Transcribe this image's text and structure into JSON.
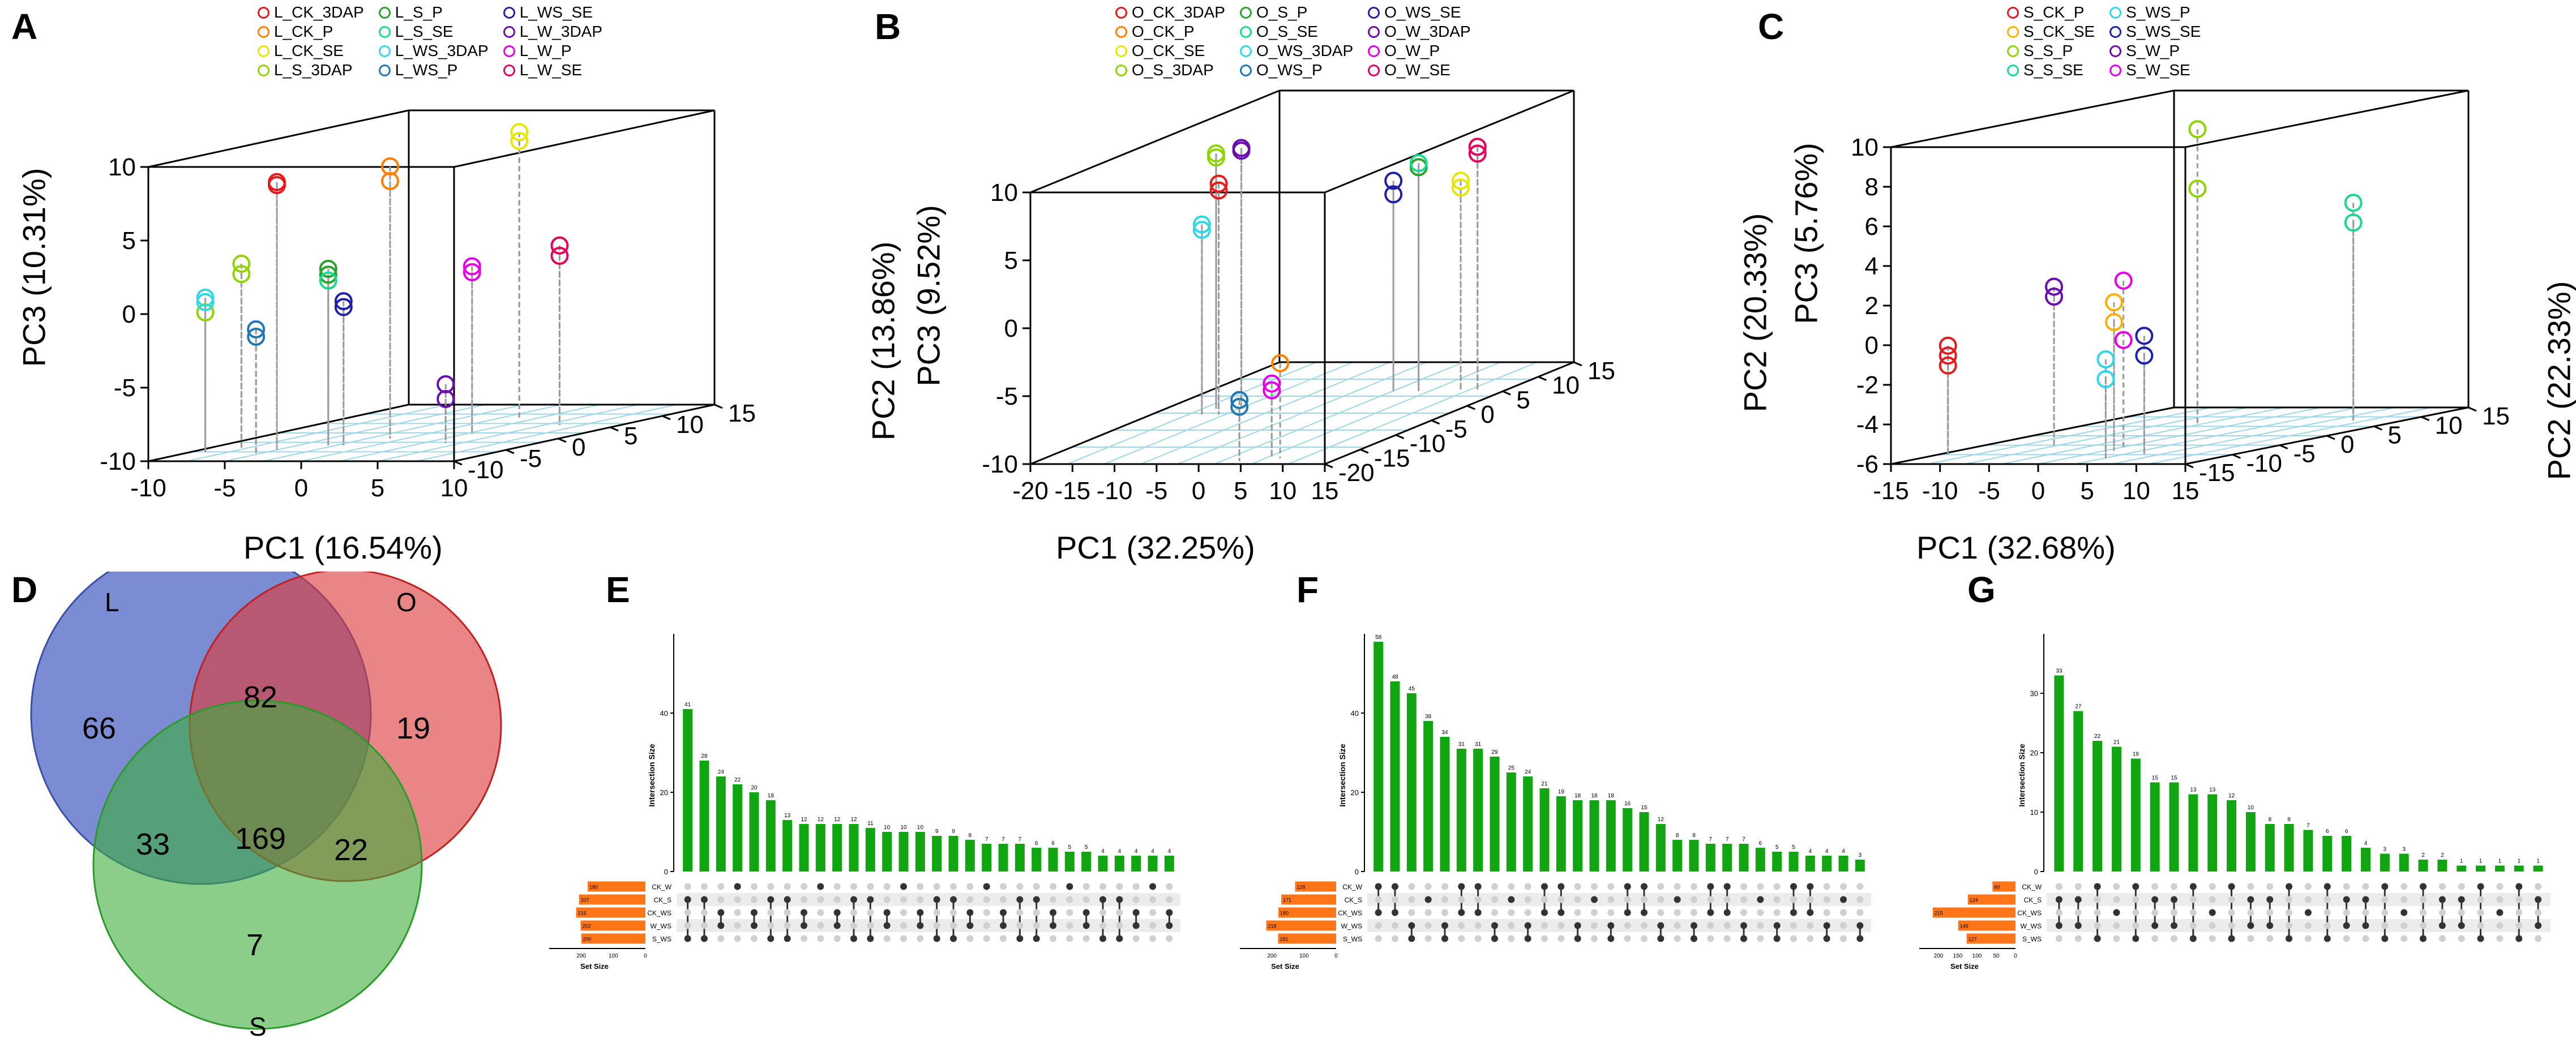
{
  "chart_data": [
    {
      "panel": "A",
      "type": "scatter",
      "legend": [
        {
          "label": "L_CK_3DAP",
          "color": "#e41a1c"
        },
        {
          "label": "L_CK_P",
          "color": "#ff7f00"
        },
        {
          "label": "L_CK_SE",
          "color": "#e6e600"
        },
        {
          "label": "L_S_3DAP",
          "color": "#8fd400"
        },
        {
          "label": "L_S_P",
          "color": "#2ca02c"
        },
        {
          "label": "L_S_SE",
          "color": "#17d98f"
        },
        {
          "label": "L_WS_3DAP",
          "color": "#33d6e6"
        },
        {
          "label": "L_WS_P",
          "color": "#1f77b4"
        },
        {
          "label": "L_WS_SE",
          "color": "#1f1fa8"
        },
        {
          "label": "L_W_3DAP",
          "color": "#6a0dad"
        },
        {
          "label": "L_W_P",
          "color": "#e600e6"
        },
        {
          "label": "L_W_SE",
          "color": "#e6005c"
        }
      ],
      "xlabel": "PC1 (16.54%)",
      "ylabel": "PC2 (13.86%)",
      "zlabel": "PC3 (10.31%)",
      "x_ticks": [
        "-10",
        "-5",
        "0",
        "5",
        "10"
      ],
      "y_ticks": [
        "-10",
        "-5",
        "0",
        "5",
        "10",
        "15"
      ],
      "z_ticks": [
        "-10",
        "-5",
        "0",
        "5",
        "10"
      ],
      "xlim": [
        -10,
        10
      ],
      "ylim": [
        -10,
        15
      ],
      "zlim": [
        -10,
        10
      ],
      "points": [
        {
          "x": -5,
          "y": -5,
          "z": 8,
          "c": 0
        },
        {
          "x": -5,
          "y": -5,
          "z": 8.2,
          "c": 0
        },
        {
          "x": -1,
          "y": 0,
          "z": 7.5,
          "c": 1
        },
        {
          "x": -1,
          "y": 0,
          "z": 8.5,
          "c": 1
        },
        {
          "x": 2,
          "y": 8,
          "z": 9,
          "c": 2
        },
        {
          "x": 2,
          "y": 8,
          "z": 9.6,
          "c": 2
        },
        {
          "x": -8,
          "y": -4,
          "z": 2.5,
          "c": 3
        },
        {
          "x": -8,
          "y": -4,
          "z": 1.8,
          "c": 3
        },
        {
          "x": -9,
          "y": -6,
          "z": -0.5,
          "c": 3
        },
        {
          "x": -3,
          "y": -3,
          "z": 2,
          "c": 4
        },
        {
          "x": -3,
          "y": -3,
          "z": 1.6,
          "c": 4
        },
        {
          "x": -3,
          "y": -3,
          "z": 1.2,
          "c": 5
        },
        {
          "x": -9,
          "y": -6,
          "z": 0.5,
          "c": 6
        },
        {
          "x": -9,
          "y": -6,
          "z": 0.2,
          "c": 6
        },
        {
          "x": -5,
          "y": -7,
          "z": -2,
          "c": 7
        },
        {
          "x": -5,
          "y": -7,
          "z": -1.5,
          "c": 7
        },
        {
          "x": -2,
          "y": -3,
          "z": -0.6,
          "c": 8
        },
        {
          "x": -2,
          "y": -3,
          "z": -0.2,
          "c": 8
        },
        {
          "x": 4,
          "y": -2,
          "z": -7,
          "c": 9
        },
        {
          "x": 4,
          "y": -2,
          "z": -6,
          "c": 9
        },
        {
          "x": 3,
          "y": 2,
          "z": 1,
          "c": 10
        },
        {
          "x": 3,
          "y": 2,
          "z": 1.4,
          "c": 10
        },
        {
          "x": 6,
          "y": 6,
          "z": 1.5,
          "c": 11
        },
        {
          "x": 6,
          "y": 6,
          "z": 2.2,
          "c": 11
        }
      ]
    },
    {
      "panel": "B",
      "type": "scatter",
      "legend": [
        {
          "label": "O_CK_3DAP",
          "color": "#e41a1c"
        },
        {
          "label": "O_CK_P",
          "color": "#ff7f00"
        },
        {
          "label": "O_CK_SE",
          "color": "#e6e600"
        },
        {
          "label": "O_S_3DAP",
          "color": "#8fd400"
        },
        {
          "label": "O_S_P",
          "color": "#2ca02c"
        },
        {
          "label": "O_S_SE",
          "color": "#17d98f"
        },
        {
          "label": "O_WS_3DAP",
          "color": "#33d6e6"
        },
        {
          "label": "O_WS_P",
          "color": "#1f77b4"
        },
        {
          "label": "O_WS_SE",
          "color": "#1f1fa8"
        },
        {
          "label": "O_W_3DAP",
          "color": "#6a0dad"
        },
        {
          "label": "O_W_P",
          "color": "#e600e6"
        },
        {
          "label": "O_W_SE",
          "color": "#e6005c"
        }
      ],
      "xlabel": "PC1 (32.25%)",
      "ylabel": "PC2 (20.33%)",
      "zlabel": "PC3 (9.52%)",
      "x_ticks": [
        "-20",
        "-15",
        "-10",
        "-5",
        "0",
        "5",
        "10",
        "15"
      ],
      "y_ticks": [
        "-20",
        "-15",
        "-10",
        "-5",
        "0",
        "5",
        "10",
        "15"
      ],
      "z_ticks": [
        "-10",
        "-5",
        "0",
        "5",
        "10"
      ],
      "xlim": [
        -20,
        15
      ],
      "ylim": [
        -20,
        15
      ],
      "zlim": [
        -10,
        10
      ],
      "points": [
        {
          "x": -12,
          "y": -3,
          "z": 7,
          "c": 0
        },
        {
          "x": -12,
          "y": -3,
          "z": 6.5,
          "c": 0
        },
        {
          "x": 8,
          "y": -18,
          "z": -3,
          "c": 1
        },
        {
          "x": 10,
          "y": 5,
          "z": 5,
          "c": 2
        },
        {
          "x": 10,
          "y": 5,
          "z": 5.5,
          "c": 2
        },
        {
          "x": -14,
          "y": -1,
          "z": 8.5,
          "c": 3
        },
        {
          "x": -14,
          "y": -1,
          "z": 8.8,
          "c": 3
        },
        {
          "x": 5,
          "y": 5,
          "z": 6.5,
          "c": 4
        },
        {
          "x": 5,
          "y": 5,
          "z": 6.8,
          "c": 5
        },
        {
          "x": -14,
          "y": -3,
          "z": 4,
          "c": 6
        },
        {
          "x": -14,
          "y": -3,
          "z": 3.6,
          "c": 6
        },
        {
          "x": 4,
          "y": -19,
          "z": -6,
          "c": 7
        },
        {
          "x": 4,
          "y": -19,
          "z": -5.5,
          "c": 7
        },
        {
          "x": 2,
          "y": 5,
          "z": 5.5,
          "c": 8
        },
        {
          "x": 2,
          "y": 5,
          "z": 4.5,
          "c": 8
        },
        {
          "x": -11,
          "y": -1,
          "z": 9,
          "c": 9
        },
        {
          "x": -11,
          "y": -1,
          "z": 9.2,
          "c": 9
        },
        {
          "x": 7,
          "y": -18,
          "z": -4.5,
          "c": 10
        },
        {
          "x": 7,
          "y": -18,
          "z": -5,
          "c": 10
        },
        {
          "x": 12,
          "y": 5,
          "z": 8,
          "c": 11
        },
        {
          "x": 12,
          "y": 5,
          "z": 7.5,
          "c": 11
        }
      ]
    },
    {
      "panel": "C",
      "type": "scatter",
      "legend": [
        {
          "label": "S_CK_P",
          "color": "#e41a1c"
        },
        {
          "label": "S_CK_SE",
          "color": "#ffb000"
        },
        {
          "label": "S_S_P",
          "color": "#8fd400"
        },
        {
          "label": "S_S_SE",
          "color": "#17d98f"
        },
        {
          "label": "S_WS_P",
          "color": "#33d6e6"
        },
        {
          "label": "S_WS_SE",
          "color": "#1f1fa8"
        },
        {
          "label": "S_W_P",
          "color": "#6a0dad"
        },
        {
          "label": "S_W_SE",
          "color": "#e600e6"
        }
      ],
      "xlabel": "PC1 (32.68%)",
      "ylabel": "PC2 (22.33%)",
      "zlabel": "PC3 (5.76%)",
      "x_ticks": [
        "-15",
        "-10",
        "-5",
        "0",
        "5",
        "10",
        "15"
      ],
      "y_ticks": [
        "-15",
        "-10",
        "-5",
        "0",
        "5",
        "10",
        "15"
      ],
      "z_ticks": [
        "-6",
        "-4",
        "-2",
        "0",
        "2",
        "4",
        "6",
        "8",
        "10"
      ],
      "xlim": [
        -15,
        15
      ],
      "ylim": [
        -15,
        15
      ],
      "zlim": [
        -6,
        10
      ],
      "points": [
        {
          "x": -14,
          "y": -10,
          "z": -1.5,
          "c": 0
        },
        {
          "x": -14,
          "y": -10,
          "z": -1,
          "c": 0
        },
        {
          "x": -14,
          "y": -10,
          "z": -0.5,
          "c": 0
        },
        {
          "x": 1,
          "y": -8,
          "z": 0.5,
          "c": 1
        },
        {
          "x": 1,
          "y": -8,
          "z": 1.5,
          "c": 1
        },
        {
          "x": -3,
          "y": 5,
          "z": 9,
          "c": 2
        },
        {
          "x": -3,
          "y": 5,
          "z": 6,
          "c": 2
        },
        {
          "x": 10,
          "y": 8,
          "z": 4,
          "c": 3
        },
        {
          "x": 10,
          "y": 8,
          "z": 5,
          "c": 3
        },
        {
          "x": 4,
          "y": -12,
          "z": -1,
          "c": 4
        },
        {
          "x": 4,
          "y": -12,
          "z": -2,
          "c": 4
        },
        {
          "x": 6,
          "y": -10,
          "z": 0,
          "c": 5
        },
        {
          "x": 6,
          "y": -10,
          "z": -1,
          "c": 5
        },
        {
          "x": -8,
          "y": -5,
          "z": 2,
          "c": 6
        },
        {
          "x": -8,
          "y": -5,
          "z": 1.5,
          "c": 6
        },
        {
          "x": 1,
          "y": -7,
          "z": 2.5,
          "c": 7
        },
        {
          "x": 1,
          "y": -7,
          "z": -0.5,
          "c": 7
        }
      ]
    },
    {
      "panel": "D",
      "type": "venn",
      "sets": [
        {
          "label": "L",
          "color": "#4a5fc1"
        },
        {
          "label": "O",
          "color": "#dd3a3a"
        },
        {
          "label": "S",
          "color": "#3cae3c"
        }
      ],
      "regions": {
        "L_only": "66",
        "O_only": "19",
        "S_only": "7",
        "LO": "82",
        "LS": "33",
        "OS": "22",
        "LOS": "169"
      }
    },
    {
      "panel": "E",
      "type": "bar",
      "ylabel": "Intersection Size",
      "yticks": [
        "0",
        "20",
        "40"
      ],
      "ylim": [
        0,
        60
      ],
      "values": [
        41,
        28,
        24,
        22,
        20,
        18,
        13,
        12,
        12,
        12,
        12,
        11,
        10,
        10,
        10,
        9,
        9,
        8,
        7,
        7,
        7,
        6,
        6,
        5,
        5,
        4,
        4,
        4,
        4,
        4
      ],
      "sets": [
        "CK_W",
        "CK_S",
        "CK_WS",
        "W_WS",
        "S_WS"
      ],
      "set_sizes": [
        180,
        207,
        216,
        202,
        200
      ],
      "set_ticks": [
        "200",
        "100",
        "0"
      ],
      "set_max": 300,
      "set_label": "Set Size"
    },
    {
      "panel": "F",
      "type": "bar",
      "ylabel": "Intersection Size",
      "yticks": [
        "0",
        "20",
        "40"
      ],
      "ylim": [
        0,
        60
      ],
      "values": [
        58,
        48,
        45,
        38,
        34,
        31,
        31,
        29,
        25,
        24,
        21,
        19,
        18,
        18,
        18,
        16,
        15,
        12,
        8,
        8,
        7,
        7,
        7,
        6,
        5,
        5,
        4,
        4,
        4,
        3
      ],
      "sets": [
        "CK_W",
        "CK_S",
        "CK_WS",
        "W_WS",
        "S_WS"
      ],
      "set_sizes": [
        128,
        171,
        180,
        218,
        181
      ],
      "set_ticks": [
        "200",
        "100",
        "0"
      ],
      "set_max": 300,
      "set_label": "Set Size"
    },
    {
      "panel": "G",
      "type": "bar",
      "ylabel": "Intersection Size",
      "yticks": [
        "0",
        "10",
        "20",
        "30"
      ],
      "ylim": [
        0,
        40
      ],
      "values": [
        33,
        27,
        22,
        21,
        19,
        15,
        15,
        13,
        13,
        12,
        10,
        8,
        8,
        7,
        6,
        6,
        4,
        3,
        3,
        2,
        2,
        1,
        1,
        1,
        1,
        1
      ],
      "sets": [
        "CK_W",
        "CK_S",
        "CK_WS",
        "W_WS",
        "S_WS"
      ],
      "set_sizes": [
        60,
        124,
        215,
        149,
        127
      ],
      "set_ticks": [
        "200",
        "150",
        "100",
        "50",
        "0"
      ],
      "set_max": 250,
      "set_label": "Set Size"
    }
  ]
}
